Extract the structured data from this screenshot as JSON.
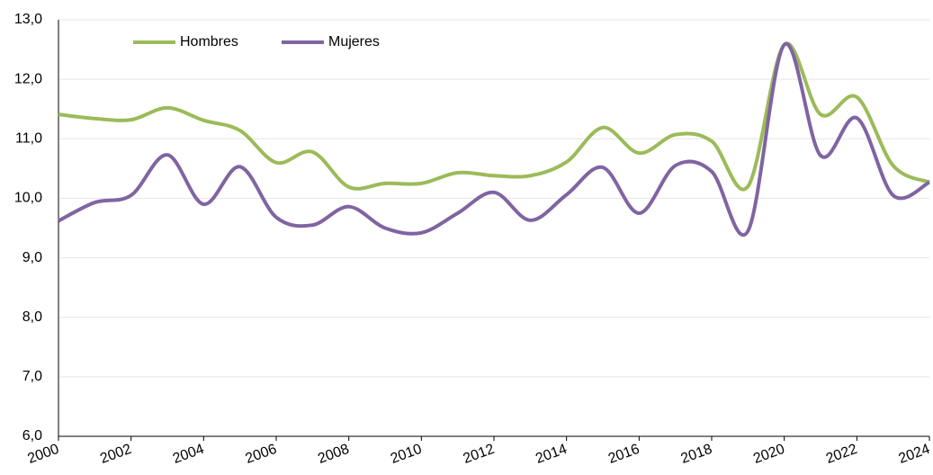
{
  "chart_data": {
    "type": "line",
    "x": [
      2000,
      2001,
      2002,
      2003,
      2004,
      2005,
      2006,
      2007,
      2008,
      2009,
      2010,
      2011,
      2012,
      2013,
      2014,
      2015,
      2016,
      2017,
      2018,
      2019,
      2020,
      2021,
      2022,
      2023,
      2024
    ],
    "series": [
      {
        "name": "Hombres",
        "color": "#9bbb59",
        "values": [
          11.41,
          11.34,
          11.32,
          11.52,
          11.31,
          11.14,
          10.6,
          10.78,
          10.19,
          10.25,
          10.25,
          10.43,
          10.38,
          10.38,
          10.61,
          11.19,
          10.76,
          11.07,
          10.96,
          10.2,
          12.58,
          11.41,
          11.7,
          10.55,
          10.27
        ]
      },
      {
        "name": "Mujeres",
        "color": "#8064a2",
        "values": [
          9.62,
          9.93,
          10.05,
          10.73,
          9.9,
          10.53,
          9.68,
          9.55,
          9.86,
          9.5,
          9.42,
          9.75,
          10.1,
          9.63,
          10.06,
          10.52,
          9.75,
          10.55,
          10.45,
          9.45,
          12.58,
          10.72,
          11.35,
          10.05,
          10.27
        ]
      }
    ],
    "xlim": [
      2000,
      2024
    ],
    "xticks": [
      2000,
      2002,
      2004,
      2006,
      2008,
      2010,
      2012,
      2014,
      2016,
      2018,
      2020,
      2022,
      2024
    ],
    "ylim": [
      6,
      13
    ],
    "yticks": [
      {
        "value": 6,
        "label": "6,0"
      },
      {
        "value": 7,
        "label": "7,0"
      },
      {
        "value": 8,
        "label": "8,0"
      },
      {
        "value": 9,
        "label": "9,0"
      },
      {
        "value": 10,
        "label": "10,0"
      },
      {
        "value": 11,
        "label": "11,0"
      },
      {
        "value": 12,
        "label": "12,0"
      },
      {
        "value": 13,
        "label": "13,0"
      }
    ],
    "grid": true,
    "legend": "top-left"
  }
}
